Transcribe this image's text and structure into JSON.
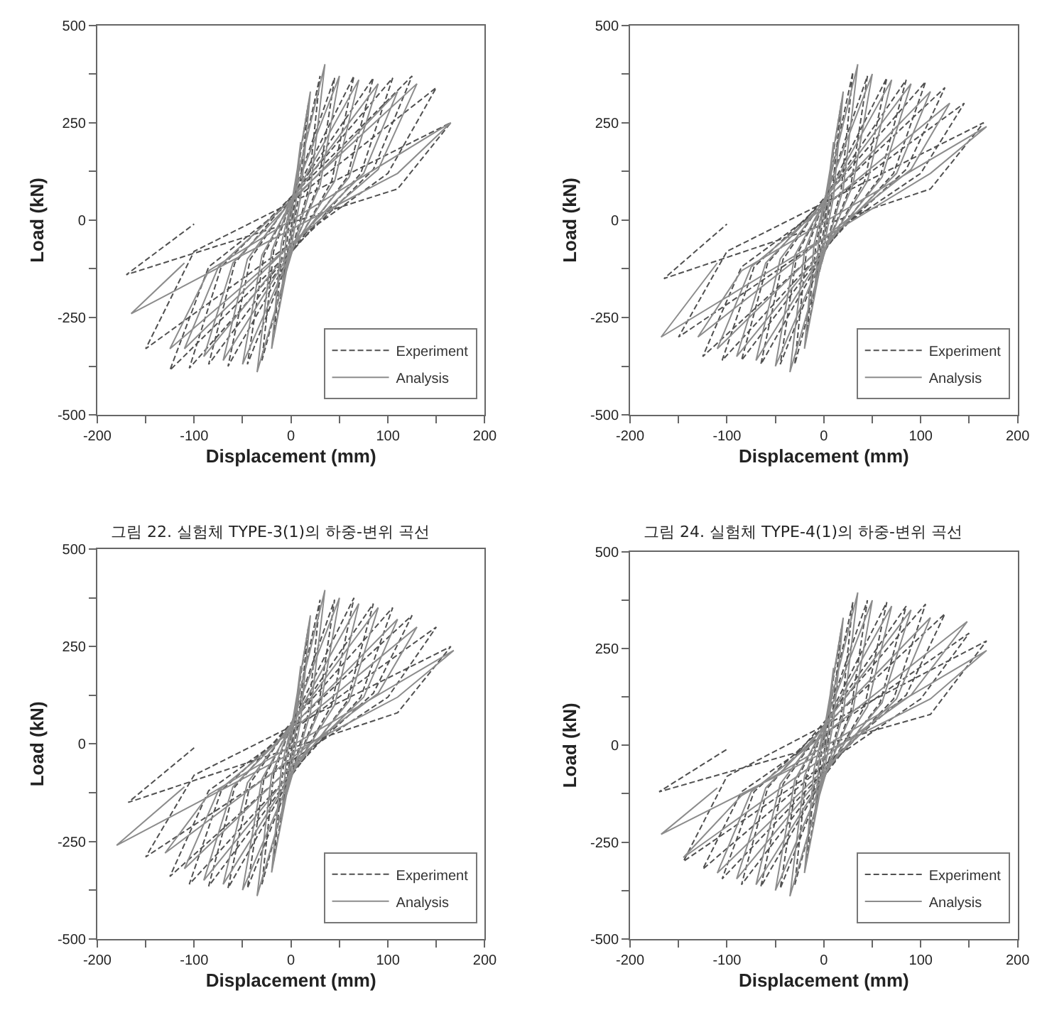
{
  "chart_data": [
    {
      "type": "line",
      "xlabel": "Displacement (mm)",
      "ylabel": "Load (kN)",
      "annotations": [
        "그림 22. 실험체 TYPE-3(1)의 하중-변위 곡선"
      ],
      "xlim": [
        -200,
        200
      ],
      "ylim": [
        -500,
        500
      ],
      "xticks": [
        -200,
        {
          "value": -150,
          "label": null
        },
        -100,
        {
          "value": -50,
          "label": null
        },
        0,
        {
          "value": 50,
          "label": null
        },
        100,
        {
          "value": 150,
          "label": null
        },
        200
      ],
      "yticks": [
        -500,
        {
          "value": -375,
          "label": null
        },
        -250,
        {
          "value": -125,
          "label": null
        },
        0,
        {
          "value": 125,
          "label": null
        },
        250,
        {
          "value": 375,
          "label": null
        },
        500
      ],
      "grid": false,
      "legend": "bottom right",
      "series": [
        {
          "name": "Experiment",
          "color": "#505050",
          "line_style": "dashed",
          "x": [
            0,
            8,
            3,
            -8,
            -3,
            18,
            8,
            -18,
            -8,
            30,
            18,
            -30,
            -18,
            45,
            28,
            -45,
            -28,
            65,
            42,
            -65,
            -42,
            85,
            58,
            -85,
            -58,
            105,
            72,
            -105,
            -72,
            125,
            85,
            -125,
            -85,
            150,
            100,
            -150,
            -100,
            165,
            110,
            -170,
            -100
          ],
          "values": [
            0,
            150,
            30,
            -160,
            -30,
            300,
            60,
            -300,
            -60,
            370,
            80,
            -360,
            -80,
            365,
            90,
            -370,
            -90,
            370,
            100,
            -375,
            -100,
            365,
            110,
            -370,
            -110,
            365,
            120,
            -380,
            -120,
            370,
            130,
            -385,
            -120,
            340,
            120,
            -330,
            -80,
            250,
            80,
            -140,
            -10
          ]
        },
        {
          "name": "Analysis",
          "color": "#8c8c8c",
          "line_style": "solid",
          "x": [
            0,
            10,
            5,
            -10,
            -5,
            20,
            10,
            -20,
            -10,
            35,
            20,
            -35,
            -20,
            50,
            30,
            -50,
            -30,
            70,
            45,
            -70,
            -45,
            90,
            60,
            -90,
            -60,
            110,
            75,
            -110,
            -75,
            130,
            90,
            -125,
            -85,
            165,
            110,
            -165,
            -110
          ],
          "values": [
            0,
            200,
            40,
            -200,
            -40,
            330,
            60,
            -330,
            -60,
            400,
            80,
            -390,
            -80,
            370,
            90,
            -370,
            -90,
            360,
            100,
            -360,
            -100,
            350,
            110,
            -350,
            -110,
            330,
            120,
            -330,
            -120,
            350,
            130,
            -330,
            -130,
            250,
            120,
            -240,
            -110
          ]
        }
      ]
    },
    {
      "type": "line",
      "xlabel": "Displacement (mm)",
      "ylabel": "Load (kN)",
      "annotations": [
        "그림 24. 실험체 TYPE-4(1)의 하중-변위 곡선"
      ],
      "xlim": [
        -200,
        200
      ],
      "ylim": [
        -500,
        500
      ],
      "xticks": [
        -200,
        {
          "value": -150,
          "label": null
        },
        -100,
        {
          "value": -50,
          "label": null
        },
        0,
        {
          "value": 50,
          "label": null
        },
        100,
        {
          "value": 150,
          "label": null
        },
        200
      ],
      "yticks": [
        -500,
        {
          "value": -375,
          "label": null
        },
        -250,
        {
          "value": -125,
          "label": null
        },
        0,
        {
          "value": 125,
          "label": null
        },
        250,
        {
          "value": 375,
          "label": null
        },
        500
      ],
      "grid": false,
      "legend": "bottom right",
      "series": [
        {
          "name": "Experiment",
          "color": "#505050",
          "line_style": "dashed",
          "x": [
            0,
            8,
            3,
            -8,
            -3,
            18,
            8,
            -18,
            -8,
            30,
            18,
            -30,
            -18,
            45,
            28,
            -45,
            -28,
            65,
            42,
            -65,
            -42,
            85,
            58,
            -85,
            -58,
            105,
            72,
            -105,
            -72,
            125,
            85,
            -125,
            -85,
            145,
            100,
            -150,
            -100,
            165,
            110,
            -165,
            -100
          ],
          "values": [
            0,
            150,
            30,
            -160,
            -30,
            300,
            60,
            -300,
            -60,
            380,
            80,
            -370,
            -80,
            370,
            90,
            -370,
            -90,
            365,
            100,
            -370,
            -100,
            360,
            110,
            -360,
            -110,
            355,
            120,
            -360,
            -120,
            340,
            130,
            -350,
            -120,
            300,
            120,
            -300,
            -80,
            250,
            80,
            -150,
            -10
          ]
        },
        {
          "name": "Analysis",
          "color": "#8c8c8c",
          "line_style": "solid",
          "x": [
            0,
            10,
            5,
            -10,
            -5,
            20,
            10,
            -20,
            -10,
            35,
            20,
            -35,
            -20,
            50,
            30,
            -50,
            -30,
            70,
            45,
            -70,
            -45,
            90,
            60,
            -90,
            -60,
            110,
            75,
            -110,
            -75,
            130,
            90,
            -130,
            -85,
            168,
            110,
            -168,
            -110
          ],
          "values": [
            0,
            200,
            40,
            -200,
            -40,
            330,
            60,
            -330,
            -60,
            400,
            80,
            -390,
            -80,
            375,
            90,
            -375,
            -90,
            360,
            100,
            -360,
            -100,
            350,
            110,
            -350,
            -110,
            330,
            120,
            -330,
            -120,
            300,
            130,
            -300,
            -130,
            240,
            120,
            -300,
            -110
          ]
        }
      ]
    },
    {
      "type": "line",
      "xlabel": "Displacement (mm)",
      "ylabel": "Load (kN)",
      "xlim": [
        -200,
        200
      ],
      "ylim": [
        -500,
        500
      ],
      "xticks": [
        -200,
        {
          "value": -150,
          "label": null
        },
        -100,
        {
          "value": -50,
          "label": null
        },
        0,
        {
          "value": 50,
          "label": null
        },
        100,
        {
          "value": 150,
          "label": null
        },
        200
      ],
      "yticks": [
        -500,
        {
          "value": -375,
          "label": null
        },
        -250,
        {
          "value": -125,
          "label": null
        },
        0,
        {
          "value": 125,
          "label": null
        },
        250,
        {
          "value": 375,
          "label": null
        },
        500
      ],
      "grid": false,
      "legend": "bottom right",
      "series": [
        {
          "name": "Experiment",
          "color": "#505050",
          "line_style": "dashed",
          "x": [
            0,
            8,
            3,
            -8,
            -3,
            18,
            8,
            -18,
            -8,
            30,
            18,
            -30,
            -18,
            45,
            28,
            -45,
            -28,
            65,
            42,
            -65,
            -42,
            85,
            58,
            -85,
            -58,
            105,
            72,
            -105,
            -72,
            125,
            85,
            -125,
            -85,
            150,
            100,
            -150,
            -100,
            165,
            110,
            -168,
            -100
          ],
          "values": [
            0,
            150,
            30,
            -160,
            -30,
            300,
            60,
            -300,
            -60,
            370,
            80,
            -360,
            -80,
            370,
            90,
            -370,
            -90,
            375,
            100,
            -370,
            -100,
            360,
            110,
            -365,
            -110,
            350,
            120,
            -360,
            -120,
            330,
            130,
            -340,
            -120,
            300,
            120,
            -290,
            -80,
            250,
            80,
            -150,
            -10
          ]
        },
        {
          "name": "Analysis",
          "color": "#8c8c8c",
          "line_style": "solid",
          "x": [
            0,
            10,
            5,
            -10,
            -5,
            20,
            10,
            -20,
            -10,
            35,
            20,
            -35,
            -20,
            50,
            30,
            -50,
            -30,
            70,
            45,
            -70,
            -45,
            90,
            60,
            -90,
            -60,
            110,
            75,
            -110,
            -75,
            130,
            90,
            -130,
            -85,
            168,
            110,
            -180,
            -110
          ],
          "values": [
            0,
            200,
            40,
            -200,
            -40,
            330,
            60,
            -330,
            -60,
            395,
            80,
            -390,
            -80,
            375,
            90,
            -375,
            -90,
            360,
            100,
            -360,
            -100,
            350,
            110,
            -350,
            -110,
            320,
            120,
            -320,
            -120,
            300,
            130,
            -280,
            -130,
            240,
            120,
            -260,
            -110
          ]
        }
      ]
    },
    {
      "type": "line",
      "xlabel": "Displacement (mm)",
      "ylabel": "Load (kN)",
      "xlim": [
        -200,
        200
      ],
      "ylim": [
        -500,
        500
      ],
      "xticks": [
        -200,
        {
          "value": -150,
          "label": null
        },
        -100,
        {
          "value": -50,
          "label": null
        },
        0,
        {
          "value": 50,
          "label": null
        },
        100,
        {
          "value": 150,
          "label": null
        },
        200
      ],
      "yticks": [
        -500,
        {
          "value": -375,
          "label": null
        },
        -250,
        {
          "value": -125,
          "label": null
        },
        0,
        {
          "value": 125,
          "label": null
        },
        250,
        {
          "value": 375,
          "label": null
        },
        500
      ],
      "grid": false,
      "legend": "bottom right",
      "series": [
        {
          "name": "Experiment",
          "color": "#505050",
          "line_style": "dashed",
          "x": [
            0,
            8,
            3,
            -8,
            -3,
            18,
            8,
            -18,
            -8,
            30,
            18,
            -30,
            -18,
            45,
            28,
            -45,
            -28,
            65,
            42,
            -65,
            -42,
            85,
            58,
            -85,
            -58,
            105,
            72,
            -105,
            -72,
            125,
            85,
            -125,
            -85,
            150,
            100,
            -145,
            -100,
            168,
            110,
            -170,
            -100
          ],
          "values": [
            0,
            150,
            30,
            -160,
            -30,
            300,
            60,
            -300,
            -60,
            370,
            80,
            -360,
            -80,
            375,
            90,
            -370,
            -90,
            370,
            100,
            -365,
            -100,
            360,
            110,
            -360,
            -110,
            365,
            120,
            -345,
            -120,
            340,
            130,
            -320,
            -120,
            290,
            120,
            -300,
            -80,
            270,
            80,
            -120,
            -10
          ]
        },
        {
          "name": "Analysis",
          "color": "#8c8c8c",
          "line_style": "solid",
          "x": [
            0,
            10,
            5,
            -10,
            -5,
            20,
            10,
            -20,
            -10,
            35,
            20,
            -35,
            -20,
            50,
            30,
            -50,
            -30,
            70,
            45,
            -70,
            -45,
            90,
            60,
            -90,
            -60,
            110,
            75,
            -110,
            -75,
            148,
            90,
            -145,
            -85,
            168,
            110,
            -168,
            -110
          ],
          "values": [
            0,
            200,
            40,
            -200,
            -40,
            330,
            60,
            -330,
            -60,
            395,
            80,
            -390,
            -80,
            375,
            90,
            -375,
            -90,
            360,
            100,
            -360,
            -100,
            350,
            110,
            -345,
            -110,
            330,
            120,
            -330,
            -120,
            320,
            130,
            -290,
            -130,
            245,
            120,
            -230,
            -110
          ]
        }
      ]
    }
  ]
}
